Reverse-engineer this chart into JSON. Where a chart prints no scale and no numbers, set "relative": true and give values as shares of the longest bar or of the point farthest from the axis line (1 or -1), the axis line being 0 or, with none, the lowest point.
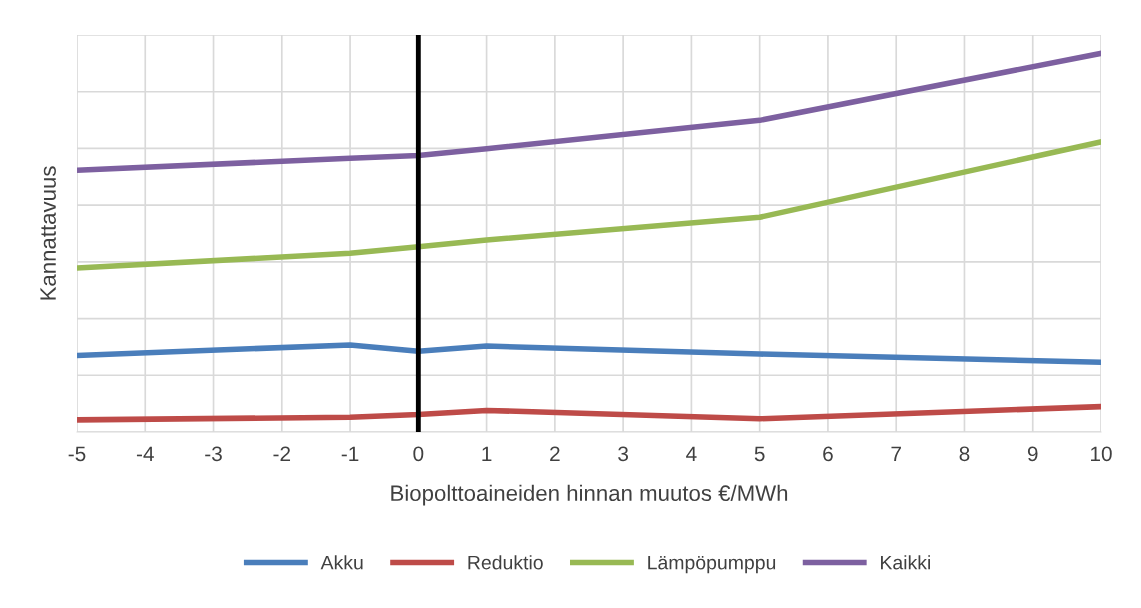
{
  "chart_data": {
    "type": "line",
    "xlabel": "Biopolttoaineiden hinnan muutos €/MWh",
    "ylabel": "Kannattavuus",
    "relative": true,
    "x": [
      -5,
      -1,
      0,
      1,
      5,
      10
    ],
    "xlim": [
      -5,
      10
    ],
    "xticks": [
      -5,
      -4,
      -3,
      -2,
      -1,
      0,
      1,
      2,
      3,
      4,
      5,
      6,
      7,
      8,
      9,
      10
    ],
    "series": [
      {
        "name": "Akku",
        "color": "#4a7ebb",
        "values": [
          0.202,
          0.23,
          0.213,
          0.227,
          0.206,
          0.184
        ]
      },
      {
        "name": "Reduktio",
        "color": "#be4b48",
        "values": [
          0.032,
          0.039,
          0.046,
          0.057,
          0.035,
          0.067
        ]
      },
      {
        "name": "Lämpöpumppu",
        "color": "#98b954",
        "values": [
          0.433,
          0.472,
          0.489,
          0.507,
          0.567,
          0.766
        ]
      },
      {
        "name": "Kaikki",
        "color": "#7d60a0",
        "values": [
          0.691,
          0.723,
          0.73,
          0.748,
          0.823,
          1
        ]
      }
    ],
    "ref_lines": [
      {
        "axis": "x",
        "value": 0,
        "color": "#000000"
      }
    ],
    "grid": true,
    "legend": "bottom",
    "marker": "none",
    "line_style": "solid"
  }
}
